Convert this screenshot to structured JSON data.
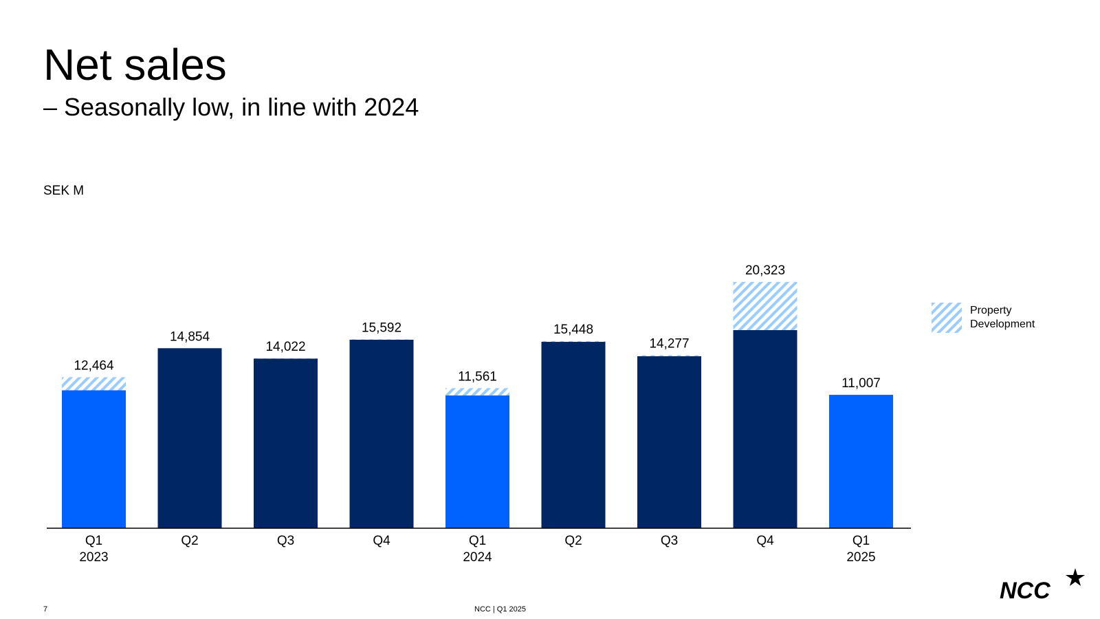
{
  "slide": {
    "title": "Net sales",
    "subtitle": "– Seasonally low, in line with 2024",
    "unit": "SEK M",
    "page_number": "7",
    "footer": "NCC | Q1 2025",
    "logo_text": "NCC"
  },
  "legend": {
    "label": "Property Development"
  },
  "colors": {
    "highlight_quarter": "#0062FF",
    "other_quarter": "#002664",
    "property_development": "#99CCFF",
    "axis": "#000000"
  },
  "chart_data": {
    "type": "bar",
    "stacked": true,
    "categories": [
      {
        "quarter": "Q1",
        "year": "2023"
      },
      {
        "quarter": "Q2",
        "year": ""
      },
      {
        "quarter": "Q3",
        "year": ""
      },
      {
        "quarter": "Q4",
        "year": ""
      },
      {
        "quarter": "Q1",
        "year": "2024"
      },
      {
        "quarter": "Q2",
        "year": ""
      },
      {
        "quarter": "Q3",
        "year": ""
      },
      {
        "quarter": "Q4",
        "year": ""
      },
      {
        "quarter": "Q1",
        "year": "2025"
      }
    ],
    "totals": [
      12464,
      14854,
      14022,
      15592,
      11561,
      15448,
      14277,
      20323,
      11007
    ],
    "total_labels": [
      "12,464",
      "14,854",
      "14,022",
      "15,592",
      "11,561",
      "15,448",
      "14,277",
      "20,323",
      "11,007"
    ],
    "series": [
      {
        "values": [
          11380,
          14854,
          14000,
          15560,
          10960,
          15380,
          14200,
          16350,
          11007
        ]
      },
      {
        "name": "Property Development",
        "values": [
          1084,
          0,
          22,
          32,
          601,
          68,
          77,
          3973,
          0
        ]
      }
    ],
    "highlighted_categories": [
      0,
      4,
      8
    ],
    "ylim": [
      0,
      21000
    ],
    "grid": false,
    "legend_position": "right"
  }
}
